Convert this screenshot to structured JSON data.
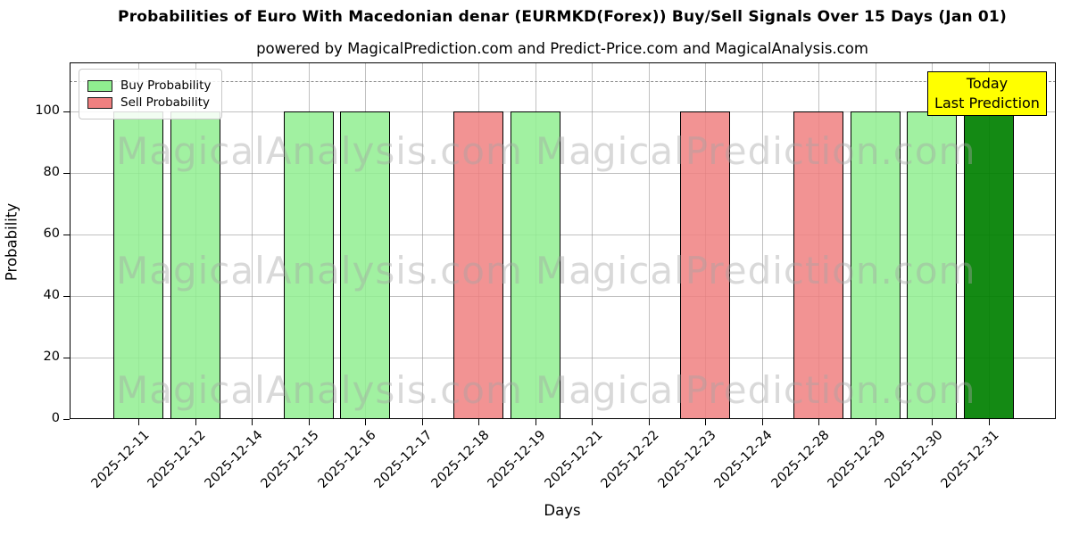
{
  "title": "Probabilities of Euro With Macedonian denar (EURMKD(Forex)) Buy/Sell Signals Over 15 Days (Jan 01)",
  "subtitle": "powered by MagicalPrediction.com and Predict-Price.com and MagicalAnalysis.com",
  "legend": {
    "items": [
      {
        "label": "Buy Probability",
        "color": "#90EE90"
      },
      {
        "label": "Sell Probability",
        "color": "#F08080"
      }
    ]
  },
  "annotation_box": {
    "line1": "Today",
    "line2": "Last Prediction",
    "bg": "#FFFF00"
  },
  "watermarks": {
    "left": "MagicalAnalysis.com",
    "right": "MagicalPrediction.com"
  },
  "colors": {
    "buy": "#90EE90",
    "sell": "#F08080",
    "today_buy": "#008000",
    "bar_edge": "#000000",
    "grid": "#8c8c8c",
    "dashed_line": "#8a8a8a",
    "annotation_bg": "#FFFF00",
    "watermark": "#a5a5a5"
  },
  "chart_data": {
    "type": "bar",
    "title": "Probabilities of Euro With Macedonian denar (EURMKD(Forex)) Buy/Sell Signals Over 15 Days (Jan 01)",
    "xlabel": "Days",
    "ylabel": "Probability",
    "grid": true,
    "legend_position": "upper left",
    "ylim": [
      0,
      116
    ],
    "yticks": [
      0,
      20,
      40,
      60,
      80,
      100
    ],
    "dashed_line_y": 110,
    "categories": [
      "2025-12-11",
      "2025-12-12",
      "2025-12-14",
      "2025-12-15",
      "2025-12-16",
      "2025-12-17",
      "2025-12-18",
      "2025-12-19",
      "2025-12-21",
      "2025-12-22",
      "2025-12-23",
      "2025-12-24",
      "2025-12-28",
      "2025-12-29",
      "2025-12-30",
      "2025-12-31"
    ],
    "series": [
      {
        "name": "Buy Probability",
        "color": "#90EE90",
        "values": [
          100,
          100,
          0,
          100,
          100,
          0,
          0,
          100,
          0,
          0,
          0,
          0,
          0,
          100,
          100,
          100
        ]
      },
      {
        "name": "Sell Probability",
        "color": "#F08080",
        "values": [
          0,
          0,
          0,
          0,
          0,
          0,
          100,
          0,
          0,
          0,
          100,
          0,
          100,
          0,
          0,
          0
        ]
      }
    ],
    "today": {
      "category": "2025-12-31",
      "index": 15,
      "series": "Buy Probability",
      "color": "#008000"
    }
  }
}
